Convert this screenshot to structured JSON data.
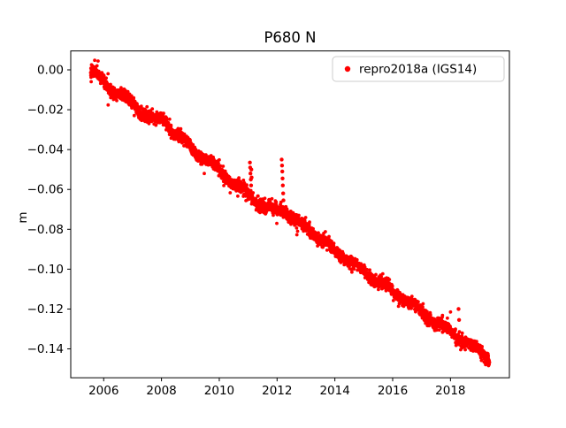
{
  "figure": {
    "background": "#ffffff"
  },
  "legend": {
    "label": "repro2018a (IGS14)",
    "marker_color": "#ff0000",
    "border_color": "#cccccc",
    "position": "upper right"
  },
  "chart_data": {
    "type": "scatter",
    "title": "P680 N",
    "xlabel": "",
    "ylabel": "m",
    "series_name": "repro2018a (IGS14)",
    "series_color": "#ff0000",
    "grid": false,
    "xlim": [
      2004.86,
      2020.04
    ],
    "ylim": [
      -0.1545,
      0.0095
    ],
    "xticks": [
      {
        "value": 2006,
        "label": "2006"
      },
      {
        "value": 2008,
        "label": "2008"
      },
      {
        "value": 2010,
        "label": "2010"
      },
      {
        "value": 2012,
        "label": "2012"
      },
      {
        "value": 2014,
        "label": "2014"
      },
      {
        "value": 2016,
        "label": "2016"
      },
      {
        "value": 2018,
        "label": "2018"
      }
    ],
    "yticks": [
      {
        "value": 0.0,
        "label": "0.00"
      },
      {
        "value": -0.02,
        "label": "−0.02"
      },
      {
        "value": -0.04,
        "label": "−0.04"
      },
      {
        "value": -0.06,
        "label": "−0.06"
      },
      {
        "value": -0.08,
        "label": "−0.08"
      },
      {
        "value": -0.1,
        "label": "−0.10"
      },
      {
        "value": -0.12,
        "label": "−0.12"
      },
      {
        "value": -0.14,
        "label": "−0.14"
      }
    ],
    "time_range_years": [
      2005.55,
      2019.35
    ],
    "sample_step_years": 0.004,
    "noise_sigma_m": 0.0015,
    "seasonal_amplitude_m": 0.0012,
    "marker_radius_px": 1.9,
    "trend_anchors": [
      [
        2005.55,
        -0.001
      ],
      [
        2005.8,
        -0.003
      ],
      [
        2006.0,
        -0.006
      ],
      [
        2006.3,
        -0.01
      ],
      [
        2006.6,
        -0.013
      ],
      [
        2007.0,
        -0.017
      ],
      [
        2007.4,
        -0.022
      ],
      [
        2007.8,
        -0.026
      ],
      [
        2008.05,
        -0.024
      ],
      [
        2008.4,
        -0.031
      ],
      [
        2008.8,
        -0.036
      ],
      [
        2009.2,
        -0.041
      ],
      [
        2009.6,
        -0.046
      ],
      [
        2010.0,
        -0.05
      ],
      [
        2010.4,
        -0.056
      ],
      [
        2010.8,
        -0.06
      ],
      [
        2011.0,
        -0.062
      ],
      [
        2011.3,
        -0.066
      ],
      [
        2011.6,
        -0.069
      ],
      [
        2011.9,
        -0.07
      ],
      [
        2012.2,
        -0.07
      ],
      [
        2012.5,
        -0.074
      ],
      [
        2012.8,
        -0.077
      ],
      [
        2013.2,
        -0.081
      ],
      [
        2013.6,
        -0.086
      ],
      [
        2014.0,
        -0.091
      ],
      [
        2014.4,
        -0.095
      ],
      [
        2014.8,
        -0.099
      ],
      [
        2015.2,
        -0.103
      ],
      [
        2015.6,
        -0.107
      ],
      [
        2016.0,
        -0.111
      ],
      [
        2016.4,
        -0.115
      ],
      [
        2016.8,
        -0.119
      ],
      [
        2017.0,
        -0.121
      ],
      [
        2017.3,
        -0.125
      ],
      [
        2017.6,
        -0.128
      ],
      [
        2018.0,
        -0.131
      ],
      [
        2018.4,
        -0.135
      ],
      [
        2018.8,
        -0.139
      ],
      [
        2019.1,
        -0.142
      ],
      [
        2019.35,
        -0.145
      ]
    ],
    "outliers": [
      [
        2011.06,
        -0.0465
      ],
      [
        2011.07,
        -0.049
      ],
      [
        2011.08,
        -0.052
      ],
      [
        2011.09,
        -0.055
      ],
      [
        2011.1,
        -0.058
      ],
      [
        2011.11,
        -0.05
      ],
      [
        2011.12,
        -0.054
      ],
      [
        2012.16,
        -0.045
      ],
      [
        2012.17,
        -0.048
      ],
      [
        2012.18,
        -0.051
      ],
      [
        2012.19,
        -0.0545
      ],
      [
        2012.2,
        -0.058
      ],
      [
        2012.21,
        -0.062
      ],
      [
        2012.22,
        -0.0655
      ],
      [
        2018.28,
        -0.12
      ],
      [
        2018.3,
        -0.1255
      ]
    ]
  }
}
